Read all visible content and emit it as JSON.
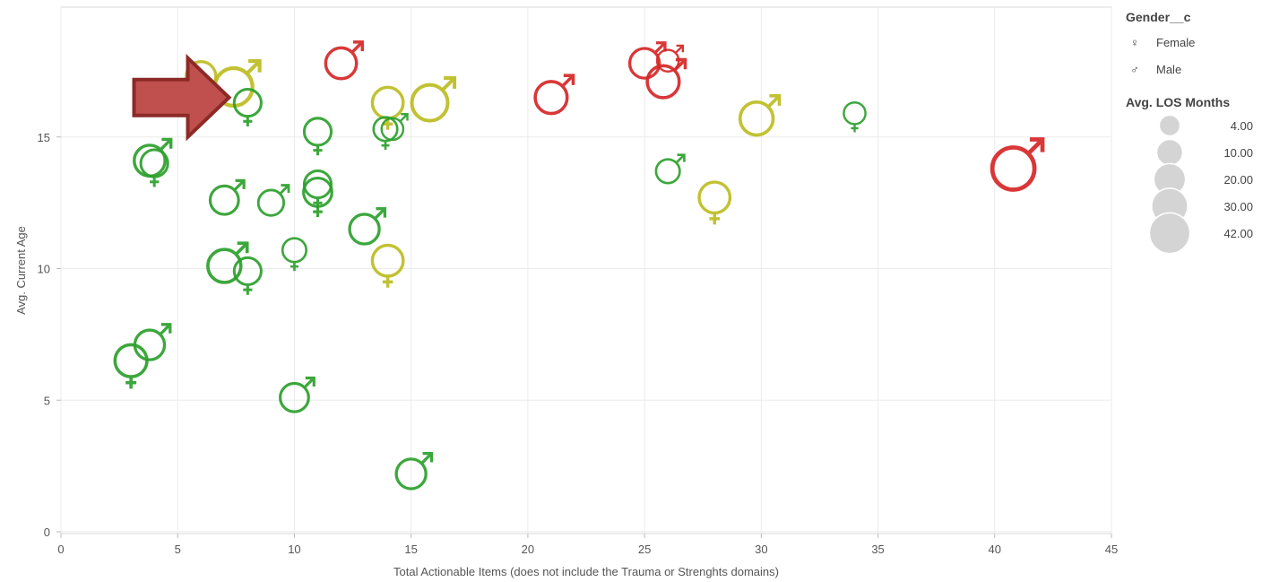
{
  "chart_data": {
    "type": "scatter",
    "xlabel": "Total Actionable Items (does not include the Trauma or Strenghts domains)",
    "ylabel": "Avg. Current Age",
    "xlim": [
      0,
      45
    ],
    "ylim": [
      0,
      20
    ],
    "x_ticks": [
      "0",
      "5",
      "10",
      "15",
      "20",
      "25",
      "30",
      "35",
      "40",
      "45"
    ],
    "y_ticks": [
      "0",
      "5",
      "10",
      "15"
    ],
    "x_tick_values": [
      0,
      5,
      10,
      15,
      20,
      25,
      30,
      35,
      40,
      45
    ],
    "y_tick_values": [
      0,
      5,
      10,
      15
    ],
    "grid": true,
    "legend_placement": "right",
    "colors": {
      "green": "#2ca02c",
      "olive": "#bcbd22",
      "red": "#d62728",
      "legend_circle": "#d4d4d4",
      "arrow_fill": "#c0504d",
      "arrow_stroke": "#8c2a27"
    },
    "points": [
      {
        "x": 6,
        "y": 17.3,
        "gender": "Female",
        "color": "olive",
        "los": 14
      },
      {
        "x": 7.4,
        "y": 16.9,
        "gender": "Male",
        "color": "olive",
        "los": 30
      },
      {
        "x": 8,
        "y": 16.3,
        "gender": "Female",
        "color": "green",
        "los": 10
      },
      {
        "x": 12,
        "y": 17.8,
        "gender": "Male",
        "color": "red",
        "los": 16
      },
      {
        "x": 14,
        "y": 16.3,
        "gender": "Female",
        "color": "olive",
        "los": 16
      },
      {
        "x": 15.8,
        "y": 16.3,
        "gender": "Male",
        "color": "olive",
        "los": 26
      },
      {
        "x": 21,
        "y": 16.5,
        "gender": "Male",
        "color": "red",
        "los": 18
      },
      {
        "x": 25,
        "y": 17.8,
        "gender": "Male",
        "color": "red",
        "los": 14
      },
      {
        "x": 26,
        "y": 17.9,
        "gender": "Male",
        "color": "red",
        "los": 4
      },
      {
        "x": 25.8,
        "y": 17.1,
        "gender": "Male",
        "color": "red",
        "los": 18
      },
      {
        "x": 29.8,
        "y": 15.7,
        "gender": "Male",
        "color": "olive",
        "los": 20
      },
      {
        "x": 34,
        "y": 15.9,
        "gender": "Female",
        "color": "green",
        "los": 4
      },
      {
        "x": 40.8,
        "y": 13.8,
        "gender": "Male",
        "color": "red",
        "los": 42
      },
      {
        "x": 3.8,
        "y": 14.1,
        "gender": "Male",
        "color": "green",
        "los": 16
      },
      {
        "x": 4,
        "y": 14,
        "gender": "Female",
        "color": "green",
        "los": 10
      },
      {
        "x": 11,
        "y": 15.2,
        "gender": "Female",
        "color": "green",
        "los": 10
      },
      {
        "x": 13.9,
        "y": 15.3,
        "gender": "Female",
        "color": "green",
        "los": 6
      },
      {
        "x": 14.2,
        "y": 15.3,
        "gender": "Male",
        "color": "green",
        "los": 4
      },
      {
        "x": 7,
        "y": 12.6,
        "gender": "Male",
        "color": "green",
        "los": 12
      },
      {
        "x": 9,
        "y": 12.5,
        "gender": "Male",
        "color": "green",
        "los": 8
      },
      {
        "x": 11,
        "y": 12.9,
        "gender": "Female",
        "color": "green",
        "los": 12
      },
      {
        "x": 11,
        "y": 13.2,
        "gender": "Female",
        "color": "green",
        "los": 10
      },
      {
        "x": 26,
        "y": 13.7,
        "gender": "Male",
        "color": "green",
        "los": 6
      },
      {
        "x": 28,
        "y": 12.7,
        "gender": "Female",
        "color": "olive",
        "los": 16
      },
      {
        "x": 13,
        "y": 11.5,
        "gender": "Male",
        "color": "green",
        "los": 14
      },
      {
        "x": 10,
        "y": 10.7,
        "gender": "Female",
        "color": "green",
        "los": 6
      },
      {
        "x": 7,
        "y": 10.1,
        "gender": "Male",
        "color": "green",
        "los": 20
      },
      {
        "x": 8,
        "y": 9.9,
        "gender": "Female",
        "color": "green",
        "los": 10
      },
      {
        "x": 14,
        "y": 10.3,
        "gender": "Female",
        "color": "olive",
        "los": 16
      },
      {
        "x": 3,
        "y": 6.5,
        "gender": "Female",
        "color": "green",
        "los": 18
      },
      {
        "x": 3.8,
        "y": 7.1,
        "gender": "Male",
        "color": "green",
        "los": 14
      },
      {
        "x": 10,
        "y": 5.1,
        "gender": "Male",
        "color": "green",
        "los": 12
      },
      {
        "x": 15,
        "y": 2.2,
        "gender": "Male",
        "color": "green",
        "los": 14
      }
    ],
    "annotation_arrow": {
      "shape": "block-arrow",
      "points_to": {
        "x": 7.2,
        "y": 16.5
      }
    }
  },
  "legend": {
    "shape_title": "Gender__c",
    "shape_items": [
      {
        "label": "Female",
        "symbol": "♀"
      },
      {
        "label": "Male",
        "symbol": "♂"
      }
    ],
    "size_title": "Avg. LOS Months",
    "size_items": [
      {
        "label": "4.00",
        "value": 4
      },
      {
        "label": "10.00",
        "value": 10
      },
      {
        "label": "20.00",
        "value": 20
      },
      {
        "label": "30.00",
        "value": 30
      },
      {
        "label": "42.00",
        "value": 42
      }
    ]
  }
}
